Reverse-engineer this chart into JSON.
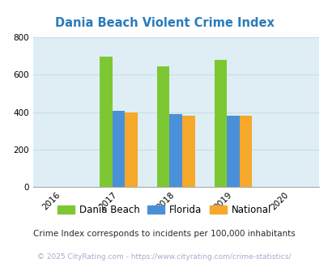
{
  "title": "Dania Beach Violent Crime Index",
  "title_color": "#2b7bba",
  "years": [
    2016,
    2017,
    2018,
    2019,
    2020
  ],
  "bar_years": [
    2017,
    2018,
    2019
  ],
  "dania_beach": [
    697,
    645,
    678
  ],
  "florida": [
    407,
    388,
    382
  ],
  "national": [
    398,
    382,
    380
  ],
  "colors": {
    "dania_beach": "#7dc832",
    "florida": "#4a90d9",
    "national": "#f5a82a"
  },
  "legend_labels": [
    "Dania Beach",
    "Florida",
    "National"
  ],
  "ylim": [
    0,
    800
  ],
  "yticks": [
    0,
    200,
    400,
    600,
    800
  ],
  "plot_bg_color": "#deeef4",
  "fig_bg_color": "#ffffff",
  "grid_color": "#c8dde6",
  "footnote1": "Crime Index corresponds to incidents per 100,000 inhabitants",
  "footnote2": "© 2025 CityRating.com - https://www.cityrating.com/crime-statistics/",
  "bar_width": 0.22
}
